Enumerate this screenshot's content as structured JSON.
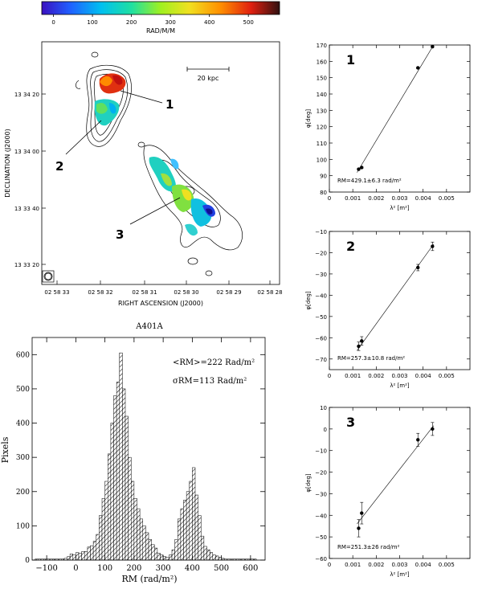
{
  "colorbar": {
    "ticks": [
      "0",
      "100",
      "200",
      "300",
      "400",
      "500"
    ],
    "label": "RAD/M/M"
  },
  "map": {
    "scale_label": "20 kpc",
    "xlabel": "RIGHT ASCENSION  (J2000)",
    "ylabel": "DECLINATION  (J2000)",
    "xticks": [
      "02 58 33",
      "02 58 32",
      "02 58 31",
      "02 58 30",
      "02 58 29",
      "02 58 28"
    ],
    "yticks": [
      "13 34 20",
      "13 34 00",
      "13 33 40",
      "13 33 20"
    ],
    "regions": [
      "1",
      "2",
      "3"
    ]
  },
  "chart_data": [
    {
      "type": "bar",
      "title": "A401A",
      "xlabel": "RM (rad/m²)",
      "ylabel": "Pixels",
      "xlim": [
        -150,
        650
      ],
      "ylim": [
        0,
        650
      ],
      "xticks": [
        -100,
        0,
        100,
        200,
        300,
        400,
        500,
        600
      ],
      "yticks": [
        0,
        100,
        200,
        300,
        400,
        500,
        600
      ],
      "annotations": [
        "<RM>=222 Rad/m²",
        "σRM=113 Rad/m²"
      ],
      "bin_width": 10,
      "bins": [
        -140,
        -130,
        -120,
        -110,
        -100,
        -90,
        -80,
        -70,
        -60,
        -50,
        -40,
        -30,
        -20,
        -10,
        0,
        10,
        20,
        30,
        40,
        50,
        60,
        70,
        80,
        90,
        100,
        110,
        120,
        130,
        140,
        150,
        160,
        170,
        180,
        190,
        200,
        210,
        220,
        230,
        240,
        250,
        260,
        270,
        280,
        290,
        300,
        310,
        320,
        330,
        340,
        350,
        360,
        370,
        380,
        390,
        400,
        410,
        420,
        430,
        440,
        450,
        460,
        470,
        480,
        490,
        500,
        510,
        520,
        530,
        540,
        550,
        560,
        570,
        580,
        590,
        600,
        610
      ],
      "values": [
        3,
        3,
        3,
        3,
        3,
        3,
        3,
        3,
        3,
        3,
        5,
        10,
        18,
        15,
        22,
        20,
        25,
        25,
        38,
        42,
        55,
        75,
        130,
        180,
        230,
        310,
        400,
        480,
        520,
        605,
        500,
        420,
        300,
        230,
        180,
        150,
        120,
        100,
        80,
        60,
        45,
        35,
        20,
        15,
        10,
        8,
        15,
        30,
        60,
        120,
        150,
        175,
        200,
        230,
        270,
        190,
        130,
        70,
        40,
        30,
        22,
        15,
        12,
        8,
        5,
        3,
        3,
        3,
        3,
        3,
        3,
        3,
        3,
        3,
        3,
        3
      ]
    },
    {
      "type": "scatter",
      "region": "1",
      "xlabel": "λ² [m²]",
      "ylabel": "φ[deg]",
      "xlim": [
        0,
        0.006
      ],
      "ylim": [
        80,
        170
      ],
      "xticks": [
        0,
        0.001,
        0.002,
        0.003,
        0.004,
        0.005
      ],
      "yticks": [
        80,
        90,
        100,
        110,
        120,
        130,
        140,
        150,
        160,
        170
      ],
      "points": [
        [
          0.00125,
          94
        ],
        [
          0.00138,
          95
        ],
        [
          0.00378,
          156
        ],
        [
          0.0044,
          169
        ]
      ],
      "errors": [
        0.5,
        0.5,
        0.5,
        0.5
      ],
      "fit": [
        [
          0.00118,
          92
        ],
        [
          0.00445,
          170
        ]
      ],
      "label": "RM=429.1±6.3  rad/m²"
    },
    {
      "type": "scatter",
      "region": "2",
      "xlabel": "λ² [m²]",
      "ylabel": "φ[deg]",
      "xlim": [
        0,
        0.006
      ],
      "ylim": [
        -75,
        -10
      ],
      "xticks": [
        0,
        0.001,
        0.002,
        0.003,
        0.004,
        0.005
      ],
      "yticks": [
        -70,
        -60,
        -50,
        -40,
        -30,
        -20,
        -10
      ],
      "points": [
        [
          0.00125,
          -64
        ],
        [
          0.00138,
          -61.5
        ],
        [
          0.00378,
          -27
        ],
        [
          0.0044,
          -17
        ]
      ],
      "errors": [
        2,
        2,
        1.5,
        2
      ],
      "fit": [
        [
          0.00118,
          -66
        ],
        [
          0.00445,
          -16
        ]
      ],
      "label": "RM=257.3±10.8  rad/m²"
    },
    {
      "type": "scatter",
      "region": "3",
      "xlabel": "λ² [m²]",
      "ylabel": "φ[deg]",
      "xlim": [
        0,
        0.006
      ],
      "ylim": [
        -60,
        10
      ],
      "xticks": [
        0,
        0.001,
        0.002,
        0.003,
        0.004,
        0.005
      ],
      "yticks": [
        -60,
        -50,
        -40,
        -30,
        -20,
        -10,
        0,
        10
      ],
      "points": [
        [
          0.00125,
          -46
        ],
        [
          0.00138,
          -39
        ],
        [
          0.00378,
          -5
        ],
        [
          0.0044,
          0
        ]
      ],
      "errors": [
        4,
        5,
        3,
        3
      ],
      "fit": [
        [
          0.00118,
          -44
        ],
        [
          0.00445,
          1.5
        ]
      ],
      "label": "RM=251.3±26  rad/m²"
    }
  ]
}
